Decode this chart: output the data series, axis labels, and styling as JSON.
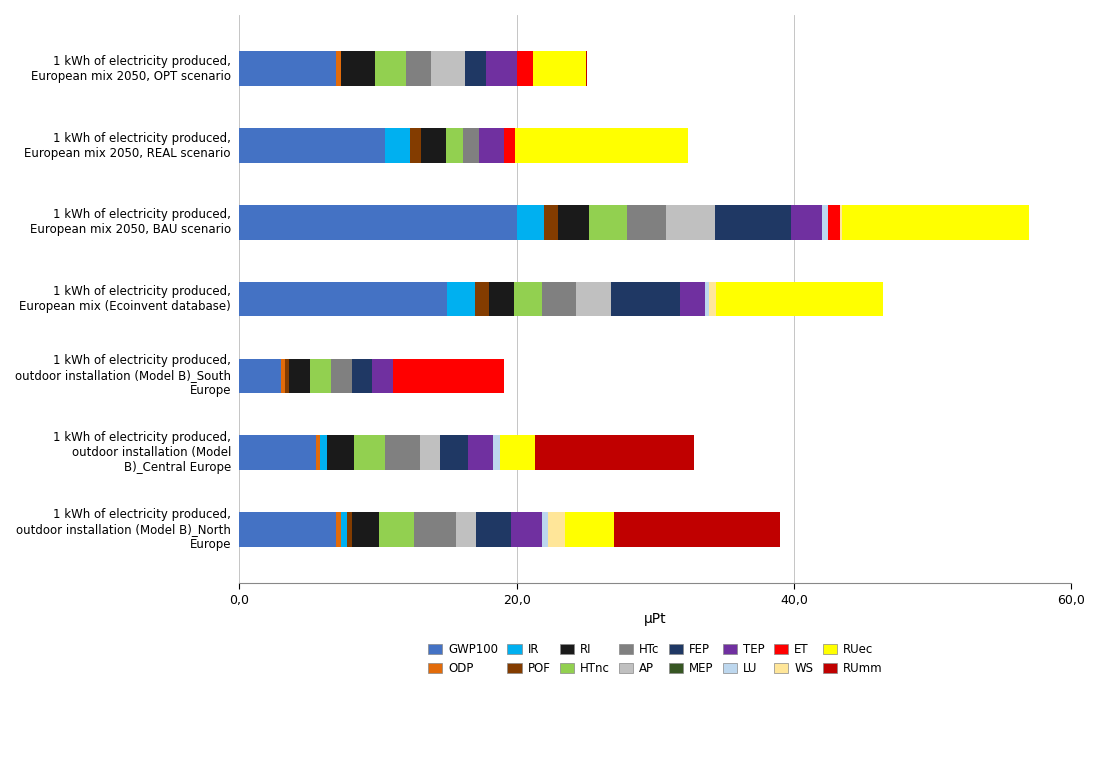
{
  "categories": [
    "1 kWh of electricity produced,\nEuropean mix 2050, OPT scenario",
    "1 kWh of electricity produced,\nEuropean mix 2050, REAL scenario",
    "1 kWh of electricity produced,\nEuropean mix 2050, BAU scenario",
    "1 kWh of electricity produced,\nEuropean mix (Ecoinvent database)",
    "1 kWh of electricity produced,\noutdoor installation (Model B)_South\nEurope",
    "1 kWh of electricity produced,\noutdoor installation (Model\nB)_Central Europe",
    "1 kWh of electricity produced,\noutdoor installation (Model B)_North\nEurope"
  ],
  "legend_labels": [
    "GWP100",
    "ODP",
    "IR",
    "POF",
    "RI",
    "HTnc",
    "HTc",
    "AP",
    "FEP",
    "MEP",
    "TEP",
    "LU",
    "ET",
    "WS",
    "RUec",
    "RUmm"
  ],
  "colors": {
    "GWP100": "#4472C4",
    "ODP": "#E26B0A",
    "IR": "#00B0F0",
    "POF": "#833C00",
    "RI": "#1A1A1A",
    "HTnc": "#92D050",
    "HTc": "#808080",
    "AP": "#C0C0C0",
    "FEP": "#1F3864",
    "MEP": "#375623",
    "TEP": "#7030A0",
    "LU": "#BDD7EE",
    "ET": "#FF0000",
    "WS": "#FFE699",
    "RUec": "#FFFF00",
    "RUmm": "#C00000"
  },
  "bar_data": [
    [
      7.0,
      0.3,
      0.0,
      0.0,
      2.5,
      2.2,
      1.8,
      2.5,
      1.5,
      0.0,
      2.2,
      0.0,
      1.2,
      0.0,
      3.8,
      0.1
    ],
    [
      10.5,
      0.0,
      1.8,
      0.8,
      1.8,
      1.2,
      1.2,
      0.0,
      0.0,
      0.0,
      1.8,
      0.0,
      0.8,
      0.0,
      12.5,
      0.0
    ],
    [
      20.0,
      0.0,
      2.0,
      1.0,
      2.2,
      2.8,
      2.8,
      3.5,
      5.5,
      0.0,
      2.2,
      0.5,
      0.8,
      0.2,
      13.5,
      0.0
    ],
    [
      15.0,
      0.0,
      2.0,
      1.0,
      1.8,
      2.0,
      2.5,
      2.5,
      5.0,
      0.0,
      1.8,
      0.3,
      0.0,
      0.5,
      12.0,
      0.0
    ],
    [
      3.0,
      0.3,
      0.0,
      0.3,
      1.5,
      1.5,
      1.5,
      0.0,
      1.5,
      0.0,
      1.5,
      0.0,
      8.0,
      0.0,
      0.0,
      0.0
    ],
    [
      5.5,
      0.3,
      0.5,
      0.0,
      2.0,
      2.2,
      2.5,
      1.5,
      2.0,
      0.0,
      1.8,
      0.5,
      0.0,
      0.0,
      2.5,
      11.5
    ],
    [
      7.0,
      0.3,
      0.5,
      0.3,
      2.0,
      2.5,
      3.0,
      1.5,
      2.5,
      0.0,
      2.2,
      0.5,
      0.0,
      1.2,
      3.5,
      12.0
    ]
  ],
  "xlabel": "μPt",
  "xlim": [
    0,
    60
  ],
  "xticks": [
    0,
    20,
    40,
    60
  ],
  "xticklabels": [
    "0,0",
    "20,0",
    "40,0",
    "60,0"
  ],
  "figsize": [
    11.0,
    7.78
  ],
  "dpi": 100
}
